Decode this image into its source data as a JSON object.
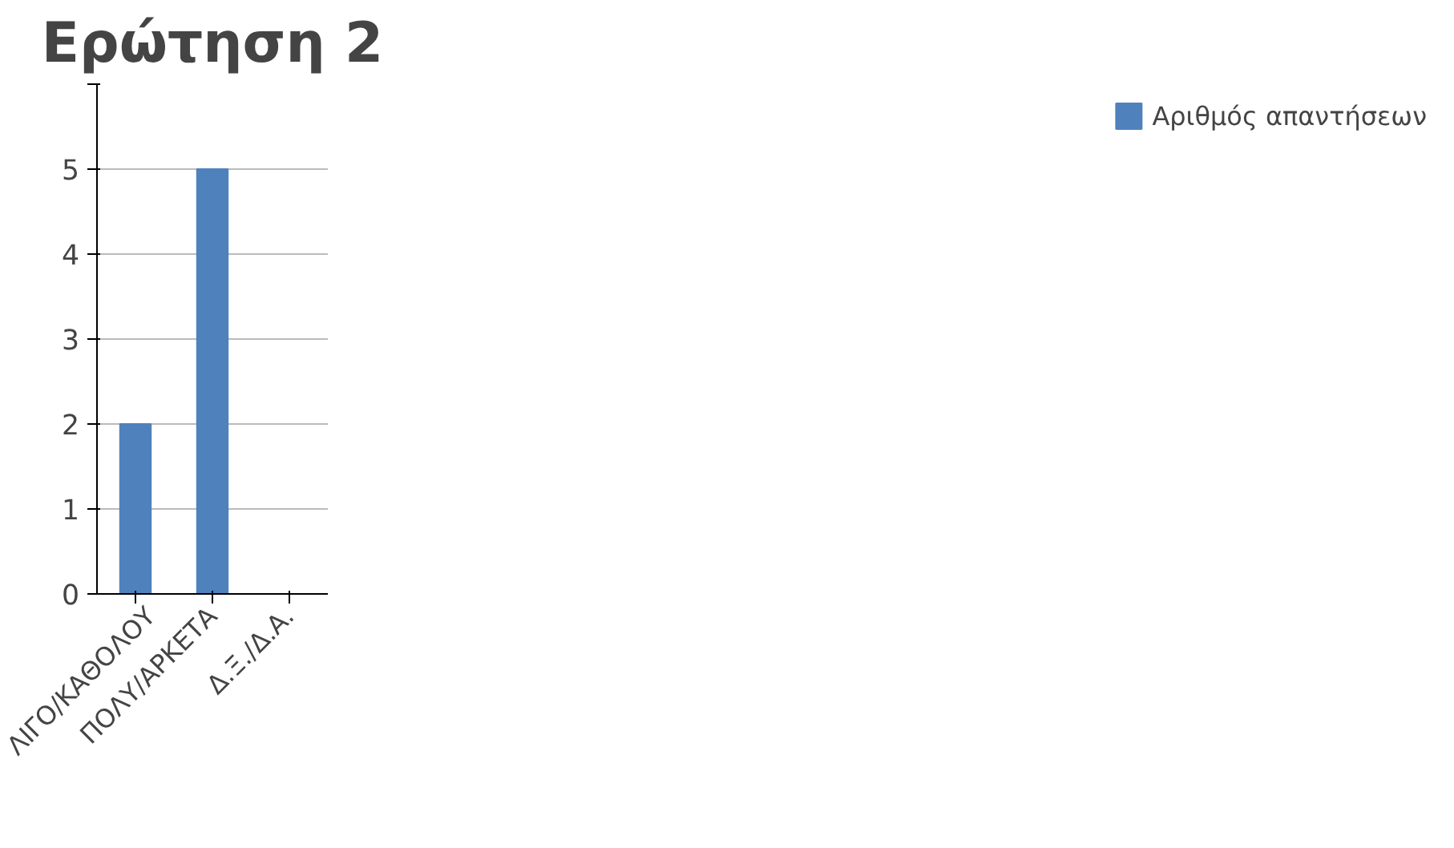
{
  "chart_data": {
    "type": "bar",
    "title": "Ερώτηση 2",
    "categories": [
      "ΛΙΓΟ/ΚΑΘΟΛΟΥ",
      "ΠΟΛΥ/ΑΡΚΕΤΑ",
      "Δ.Ξ./Δ.Α."
    ],
    "series": [
      {
        "name": "Αριθμός απαντήσεων",
        "color": "#4f81bd",
        "values": [
          2,
          5,
          0
        ]
      }
    ],
    "ylim": [
      0,
      6
    ],
    "yticks": [
      0,
      1,
      2,
      3,
      4,
      5,
      {
        "value": 6,
        "label": null
      }
    ],
    "grid": "y",
    "legend": "right"
  }
}
